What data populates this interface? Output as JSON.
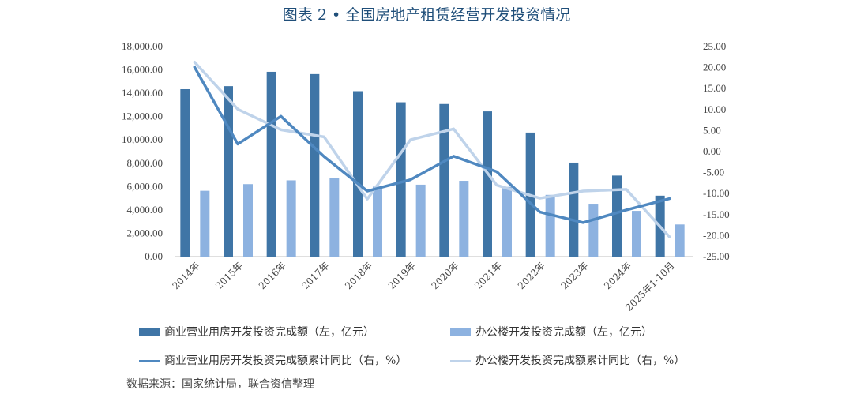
{
  "title": "图表 2 • 全国房地产租赁经营开发投资情况",
  "source": "数据来源：国家统计局，联合资信整理",
  "colors": {
    "series1": "#3f75a6",
    "series2": "#8db2e0",
    "series3": "#4f88c0",
    "series4": "#bfd3ea"
  },
  "chart_data": {
    "type": "bar",
    "categories": [
      "2014年",
      "2015年",
      "2016年",
      "2017年",
      "2018年",
      "2019年",
      "2020年",
      "2021年",
      "2022年",
      "2023年",
      "2024年",
      "2025年1-10月"
    ],
    "y_left_ticks": [
      "0.00",
      "2,000.00",
      "4,000.00",
      "6,000.00",
      "8,000.00",
      "10,000.00",
      "12,000.00",
      "14,000.00",
      "16,000.00",
      "18,000.00"
    ],
    "y_right_ticks": [
      "-25.00",
      "-20.00",
      "-15.00",
      "-10.00",
      "-5.00",
      "0.00",
      "5.00",
      "10.00",
      "15.00",
      "20.00",
      "25.00"
    ],
    "ylim_left": [
      0,
      18000
    ],
    "ylim_right": [
      -25,
      25
    ],
    "series": [
      {
        "name": "商业营业用房开发投资完成额（左，亿元）",
        "kind": "bar",
        "axis": "left",
        "values": [
          14346,
          14607,
          15838,
          15640,
          14177,
          13226,
          13076,
          12445,
          10630,
          8055,
          6944,
          5222
        ]
      },
      {
        "name": "办公楼开发投资完成额（左，亿元）",
        "kind": "bar",
        "axis": "left",
        "values": [
          5641,
          6210,
          6533,
          6761,
          5996,
          6163,
          6494,
          5974,
          5291,
          4531,
          3919,
          2754
        ]
      },
      {
        "name": "商业营业用房开发投资完成额累计同比（右，%）",
        "kind": "line",
        "axis": "right",
        "values": [
          20.1,
          1.8,
          8.4,
          -1.2,
          -9.4,
          -6.7,
          -1.1,
          -4.8,
          -14.4,
          -16.9,
          -13.9,
          -11.2
        ]
      },
      {
        "name": "办公楼开发投资完成额累计同比（右，%）",
        "kind": "line",
        "axis": "right",
        "values": [
          21.3,
          10.1,
          5.2,
          3.5,
          -11.3,
          2.8,
          5.4,
          -8.0,
          -11.1,
          -9.4,
          -9.0,
          -20.3
        ]
      }
    ]
  }
}
